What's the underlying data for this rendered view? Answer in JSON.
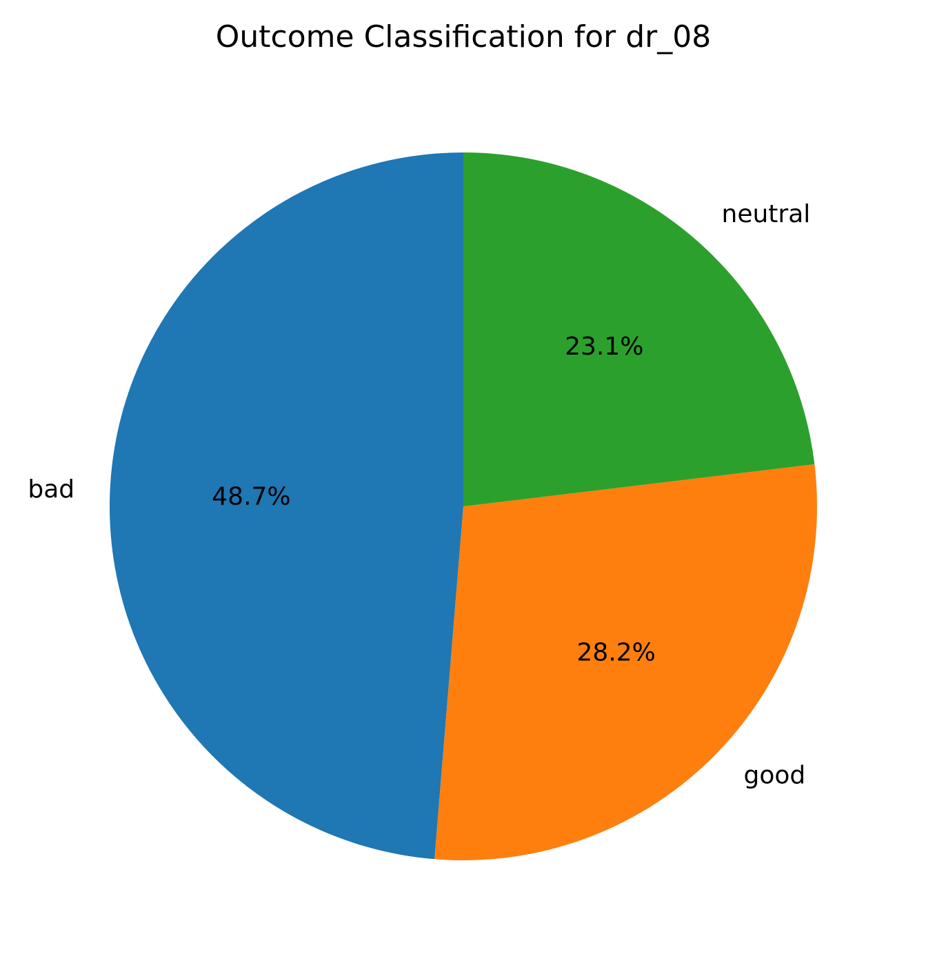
{
  "chart_data": {
    "type": "pie",
    "title": "Outcome Classification for dr_08",
    "start_angle_deg": 90,
    "direction": "counterclockwise",
    "slices": [
      {
        "label": "bad",
        "value": 48.7,
        "pct_text": "48.7%",
        "color": "#1f77b4"
      },
      {
        "label": "good",
        "value": 28.2,
        "pct_text": "28.2%",
        "color": "#ff7f0e"
      },
      {
        "label": "neutral",
        "value": 23.1,
        "pct_text": "23.1%",
        "color": "#2ca02c"
      }
    ]
  }
}
